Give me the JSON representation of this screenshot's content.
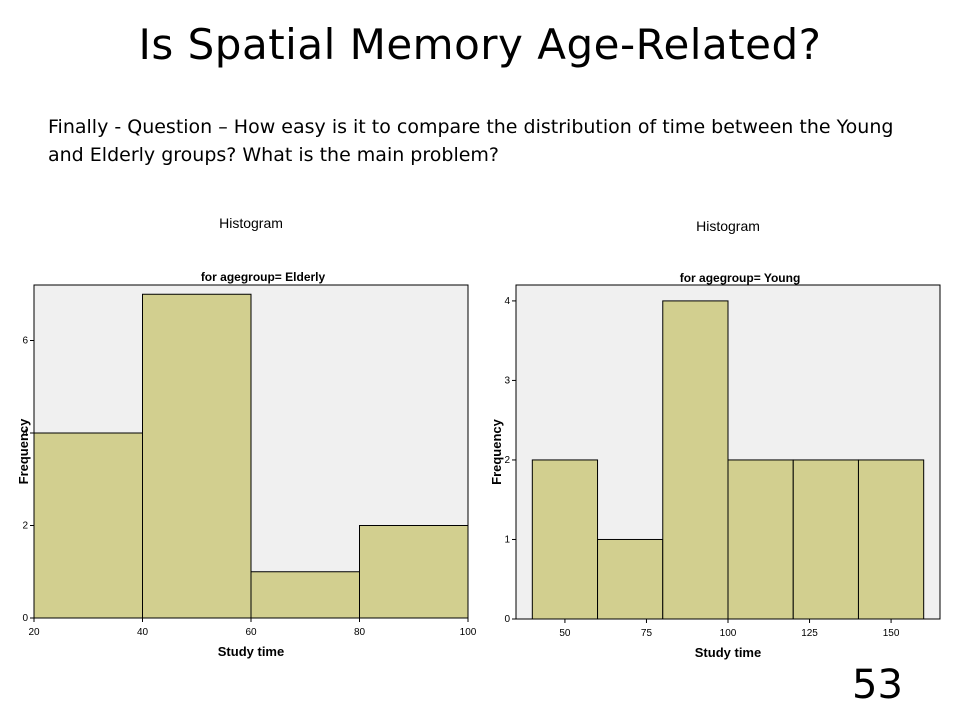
{
  "slide": {
    "title": "Is Spatial Memory Age-Related?",
    "question": "Finally - Question – How easy is it to compare the distribution of time between the Young and Elderly groups? What is the main problem?",
    "page_number": "53"
  },
  "colors": {
    "bar_fill": "#D2CF8F",
    "bar_stroke": "#000000",
    "plot_bg": "#F0F0F0"
  },
  "chart_data": [
    {
      "type": "bar",
      "title": "Histogram",
      "subtitle": "for agegroup= Elderly",
      "xlabel": "Study time",
      "ylabel": "Frequency",
      "bins": [
        [
          20,
          40
        ],
        [
          40,
          60
        ],
        [
          60,
          80
        ],
        [
          80,
          100
        ]
      ],
      "values": [
        4,
        7,
        1,
        2
      ],
      "xticks": [
        20,
        40,
        60,
        80,
        100
      ],
      "yticks": [
        0,
        2,
        4,
        6
      ],
      "xlim": [
        20,
        100
      ],
      "ylim": [
        0,
        7.2
      ],
      "grid": false
    },
    {
      "type": "bar",
      "title": "Histogram",
      "subtitle": "for agegroup= Young",
      "xlabel": "Study time",
      "ylabel": "Frequency",
      "bins": [
        [
          40,
          60
        ],
        [
          60,
          80
        ],
        [
          80,
          100
        ],
        [
          100,
          120
        ],
        [
          120,
          140
        ],
        [
          140,
          160
        ]
      ],
      "values": [
        2,
        1,
        4,
        2,
        2,
        2
      ],
      "xticks": [
        50,
        75,
        100,
        125,
        150
      ],
      "yticks": [
        0,
        1,
        2,
        3,
        4
      ],
      "xlim": [
        35,
        165
      ],
      "ylim": [
        0,
        4.2
      ],
      "grid": false
    }
  ]
}
